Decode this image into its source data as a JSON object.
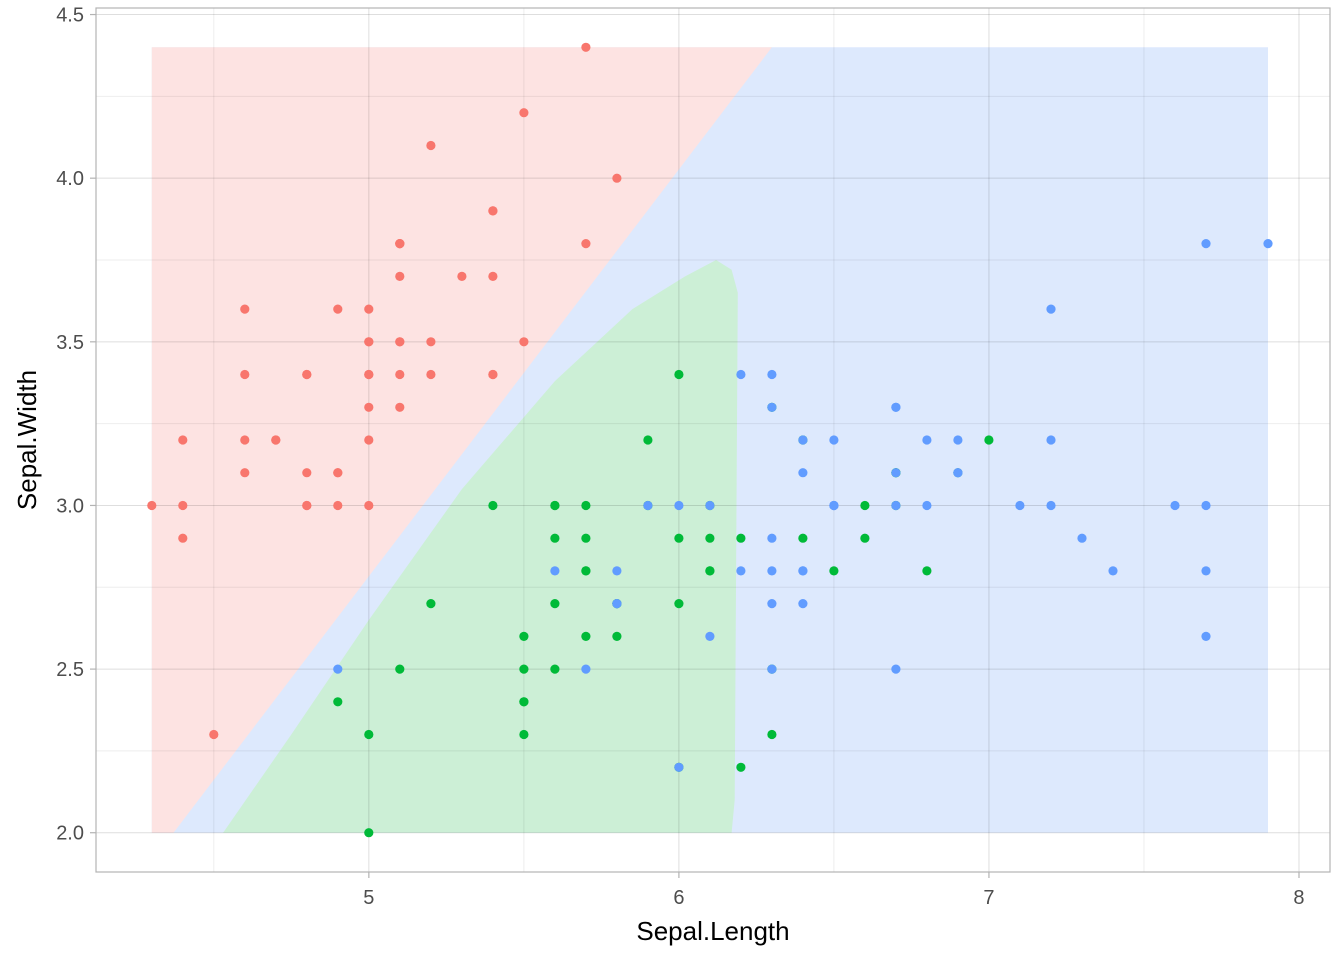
{
  "chart_data": {
    "type": "scatter",
    "title": "",
    "xlabel": "Sepal.Length",
    "ylabel": "Sepal.Width",
    "xlim": [
      4.12,
      8.1
    ],
    "ylim": [
      1.88,
      4.52
    ],
    "x_ticks": [
      5,
      6,
      7,
      8
    ],
    "x_tick_labels": [
      "5",
      "6",
      "7",
      "8"
    ],
    "y_ticks": [
      2.0,
      2.5,
      3.0,
      3.5,
      4.0,
      4.5
    ],
    "y_tick_labels": [
      "2.0",
      "2.5",
      "3.0",
      "3.5",
      "4.0",
      "4.5"
    ],
    "grid": true,
    "legend": "none",
    "regions": [
      {
        "class": "setosa",
        "color": "#fde3e2",
        "points": [
          [
            4.3,
            2.0
          ],
          [
            4.37,
            2.0
          ],
          [
            6.3,
            4.4
          ],
          [
            4.3,
            4.4
          ]
        ]
      },
      {
        "class": "versicolor",
        "color": "#ccefd6",
        "points": [
          [
            4.53,
            2.0
          ],
          [
            6.17,
            2.0
          ],
          [
            6.18,
            2.1
          ],
          [
            6.19,
            3.65
          ],
          [
            6.17,
            3.72
          ],
          [
            6.12,
            3.75
          ],
          [
            6.02,
            3.7
          ],
          [
            5.85,
            3.6
          ],
          [
            5.6,
            3.38
          ],
          [
            5.3,
            3.05
          ],
          [
            5.0,
            2.65
          ],
          [
            4.75,
            2.3
          ]
        ]
      },
      {
        "class": "virginica",
        "color": "#dde9fd",
        "points": [
          [
            4.3,
            2.0
          ],
          [
            7.9,
            2.0
          ],
          [
            7.9,
            4.4
          ],
          [
            4.3,
            4.4
          ]
        ]
      }
    ],
    "series": [
      {
        "class": "setosa",
        "color": "#f8766d",
        "points": [
          [
            5.1,
            3.5
          ],
          [
            4.9,
            3.0
          ],
          [
            4.7,
            3.2
          ],
          [
            4.6,
            3.1
          ],
          [
            5.0,
            3.6
          ],
          [
            5.4,
            3.9
          ],
          [
            4.6,
            3.4
          ],
          [
            5.0,
            3.4
          ],
          [
            4.4,
            2.9
          ],
          [
            4.9,
            3.1
          ],
          [
            5.4,
            3.7
          ],
          [
            4.8,
            3.4
          ],
          [
            4.8,
            3.0
          ],
          [
            4.3,
            3.0
          ],
          [
            5.8,
            4.0
          ],
          [
            5.7,
            4.4
          ],
          [
            5.4,
            3.9
          ],
          [
            5.1,
            3.5
          ],
          [
            5.7,
            3.8
          ],
          [
            5.1,
            3.8
          ],
          [
            5.4,
            3.4
          ],
          [
            5.1,
            3.7
          ],
          [
            4.6,
            3.6
          ],
          [
            5.1,
            3.3
          ],
          [
            4.8,
            3.4
          ],
          [
            5.0,
            3.0
          ],
          [
            5.0,
            3.4
          ],
          [
            5.2,
            3.5
          ],
          [
            5.2,
            3.4
          ],
          [
            4.7,
            3.2
          ],
          [
            4.8,
            3.1
          ],
          [
            5.4,
            3.4
          ],
          [
            5.2,
            4.1
          ],
          [
            5.5,
            4.2
          ],
          [
            4.9,
            3.1
          ],
          [
            5.0,
            3.2
          ],
          [
            5.5,
            3.5
          ],
          [
            4.9,
            3.6
          ],
          [
            4.4,
            3.0
          ],
          [
            5.1,
            3.4
          ],
          [
            5.0,
            3.5
          ],
          [
            4.5,
            2.3
          ],
          [
            4.4,
            3.2
          ],
          [
            5.0,
            3.5
          ],
          [
            5.1,
            3.8
          ],
          [
            4.8,
            3.0
          ],
          [
            5.1,
            3.8
          ],
          [
            4.6,
            3.2
          ],
          [
            5.3,
            3.7
          ],
          [
            5.0,
            3.3
          ]
        ]
      },
      {
        "class": "versicolor",
        "color": "#00ba38",
        "points": [
          [
            7.0,
            3.2
          ],
          [
            6.4,
            3.2
          ],
          [
            6.9,
            3.1
          ],
          [
            5.5,
            2.3
          ],
          [
            6.5,
            2.8
          ],
          [
            5.7,
            2.8
          ],
          [
            6.3,
            3.3
          ],
          [
            4.9,
            2.4
          ],
          [
            6.6,
            2.9
          ],
          [
            5.2,
            2.7
          ],
          [
            5.0,
            2.0
          ],
          [
            5.9,
            3.0
          ],
          [
            6.0,
            2.2
          ],
          [
            6.1,
            2.9
          ],
          [
            5.6,
            2.9
          ],
          [
            6.7,
            3.1
          ],
          [
            5.6,
            3.0
          ],
          [
            5.8,
            2.7
          ],
          [
            6.2,
            2.2
          ],
          [
            5.6,
            2.5
          ],
          [
            5.9,
            3.2
          ],
          [
            6.1,
            2.8
          ],
          [
            6.3,
            2.5
          ],
          [
            6.1,
            2.8
          ],
          [
            6.4,
            2.9
          ],
          [
            6.6,
            3.0
          ],
          [
            6.8,
            2.8
          ],
          [
            6.7,
            3.0
          ],
          [
            6.0,
            2.9
          ],
          [
            5.7,
            2.6
          ],
          [
            5.5,
            2.4
          ],
          [
            5.5,
            2.4
          ],
          [
            5.8,
            2.7
          ],
          [
            6.0,
            2.7
          ],
          [
            5.4,
            3.0
          ],
          [
            6.0,
            3.4
          ],
          [
            6.7,
            3.1
          ],
          [
            6.3,
            2.3
          ],
          [
            5.6,
            3.0
          ],
          [
            5.5,
            2.5
          ],
          [
            5.5,
            2.6
          ],
          [
            6.1,
            3.0
          ],
          [
            5.8,
            2.6
          ],
          [
            5.0,
            2.3
          ],
          [
            5.6,
            2.7
          ],
          [
            5.7,
            3.0
          ],
          [
            5.7,
            2.9
          ],
          [
            6.2,
            2.9
          ],
          [
            5.1,
            2.5
          ],
          [
            5.7,
            2.8
          ]
        ]
      },
      {
        "class": "virginica",
        "color": "#619cff",
        "points": [
          [
            6.3,
            3.3
          ],
          [
            5.8,
            2.7
          ],
          [
            7.1,
            3.0
          ],
          [
            6.3,
            2.9
          ],
          [
            6.5,
            3.0
          ],
          [
            7.6,
            3.0
          ],
          [
            4.9,
            2.5
          ],
          [
            7.3,
            2.9
          ],
          [
            6.7,
            2.5
          ],
          [
            7.2,
            3.6
          ],
          [
            6.5,
            3.2
          ],
          [
            6.4,
            2.7
          ],
          [
            6.8,
            3.0
          ],
          [
            5.7,
            2.5
          ],
          [
            5.8,
            2.8
          ],
          [
            6.4,
            3.2
          ],
          [
            6.5,
            3.0
          ],
          [
            7.7,
            3.8
          ],
          [
            7.7,
            2.6
          ],
          [
            6.0,
            2.2
          ],
          [
            6.9,
            3.2
          ],
          [
            5.6,
            2.8
          ],
          [
            7.7,
            2.8
          ],
          [
            6.3,
            2.7
          ],
          [
            6.7,
            3.3
          ],
          [
            7.2,
            3.2
          ],
          [
            6.2,
            2.8
          ],
          [
            6.1,
            3.0
          ],
          [
            6.4,
            2.8
          ],
          [
            7.2,
            3.0
          ],
          [
            7.4,
            2.8
          ],
          [
            7.9,
            3.8
          ],
          [
            6.4,
            2.8
          ],
          [
            6.3,
            2.8
          ],
          [
            6.1,
            2.6
          ],
          [
            7.7,
            3.0
          ],
          [
            6.3,
            3.4
          ],
          [
            6.4,
            3.1
          ],
          [
            6.0,
            3.0
          ],
          [
            6.9,
            3.1
          ],
          [
            6.7,
            3.1
          ],
          [
            6.9,
            3.1
          ],
          [
            5.8,
            2.7
          ],
          [
            6.8,
            3.2
          ],
          [
            6.7,
            3.3
          ],
          [
            6.7,
            3.0
          ],
          [
            6.3,
            2.5
          ],
          [
            6.5,
            3.0
          ],
          [
            6.2,
            3.4
          ],
          [
            5.9,
            3.0
          ]
        ]
      }
    ]
  }
}
